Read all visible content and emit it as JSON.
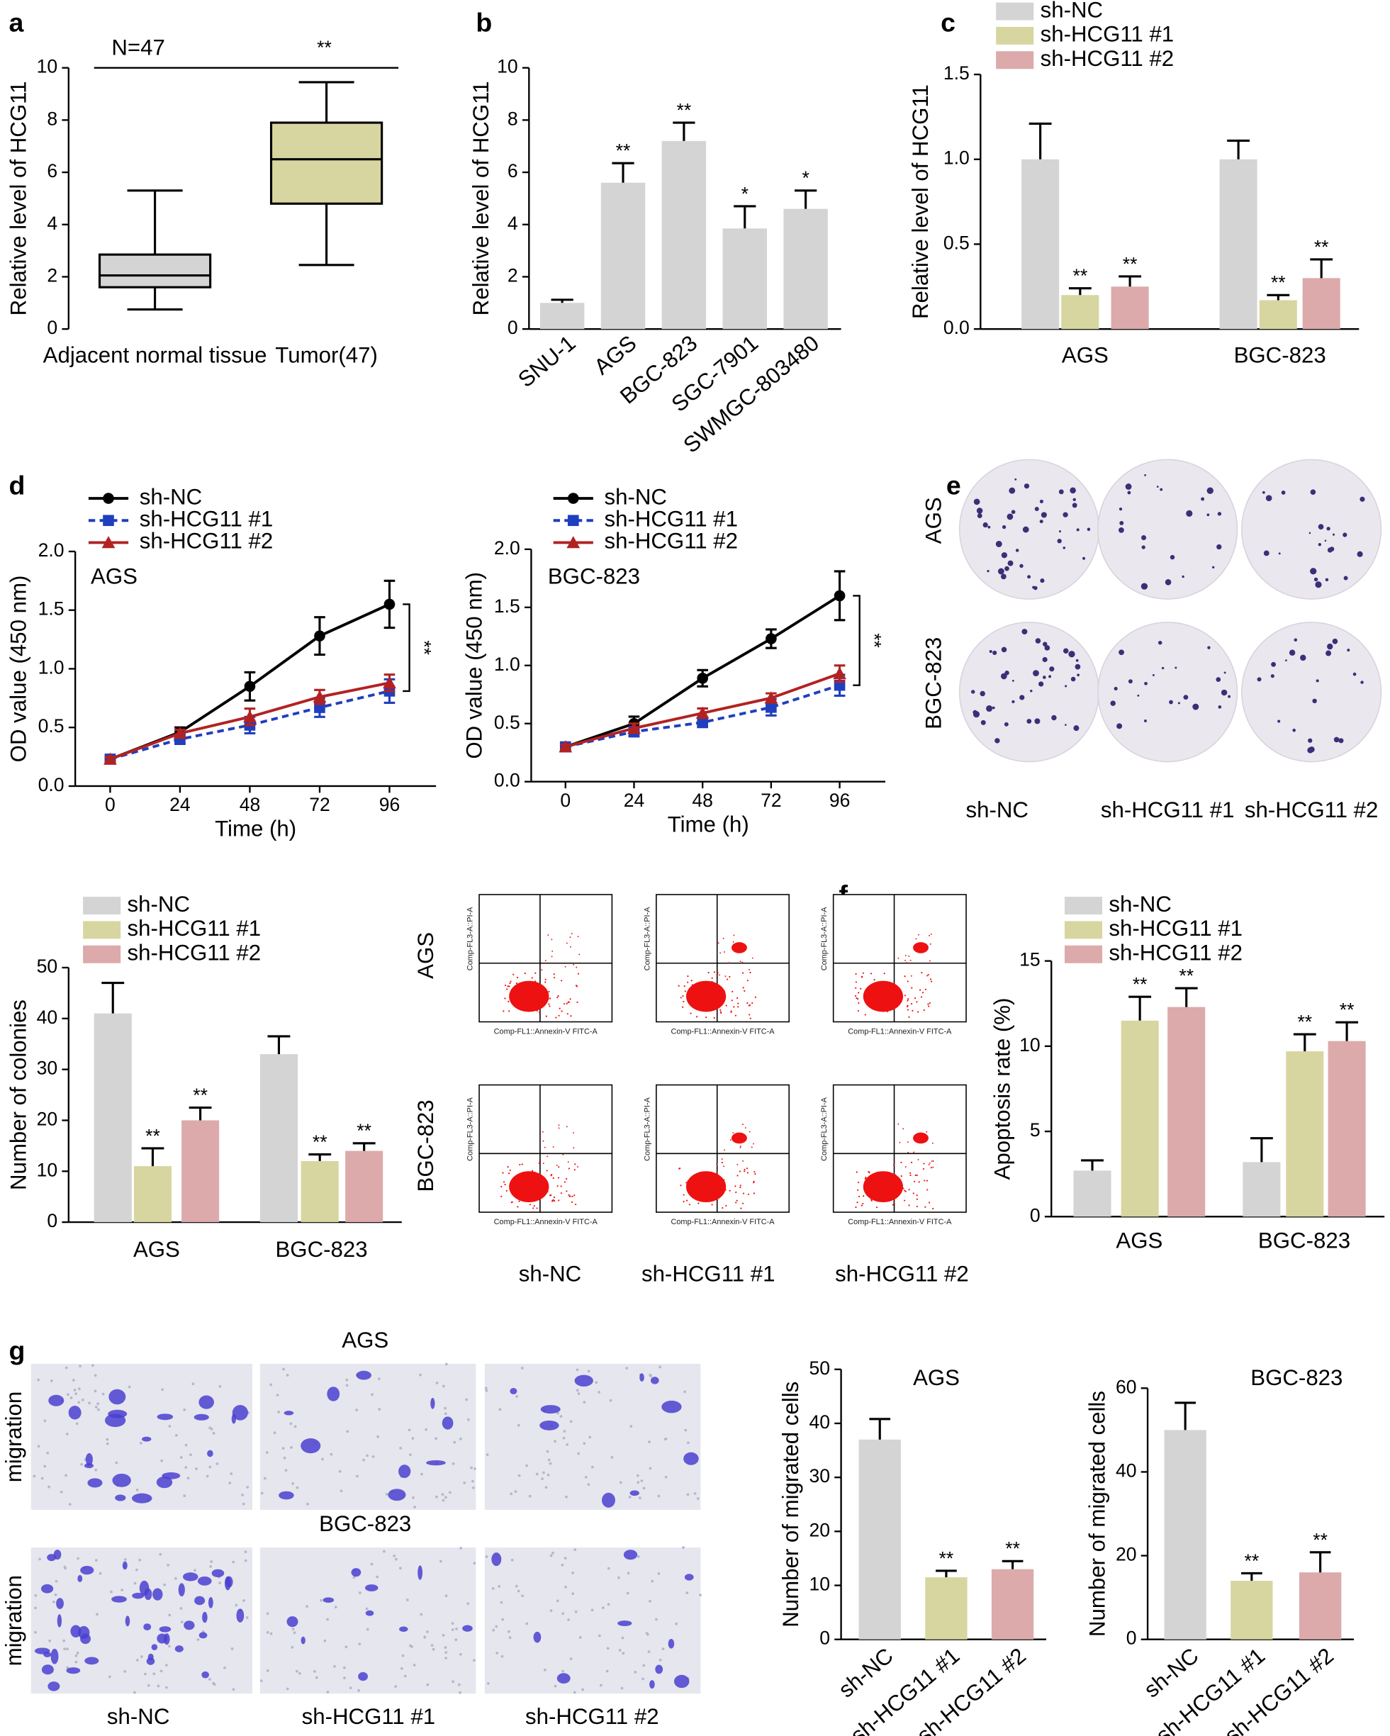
{
  "chart_data": [
    {
      "type": "box",
      "panel": "a",
      "ylabel": "Relative level of HCG11",
      "categories": [
        "Adjacent normal tissue",
        "Tumor(47)"
      ],
      "boxes": [
        {
          "min": 0.75,
          "q1": 1.6,
          "median": 2.05,
          "q3": 2.85,
          "max": 5.3,
          "color": "#d4d4d4"
        },
        {
          "min": 2.45,
          "q1": 4.8,
          "median": 6.5,
          "q3": 7.9,
          "max": 9.45,
          "color": "#d8d6a0"
        }
      ],
      "ylim": [
        0,
        10
      ],
      "yticks": [
        0,
        2,
        4,
        6,
        8,
        10
      ],
      "annotations": [
        "N=47",
        "**"
      ]
    },
    {
      "type": "bar",
      "panel": "b",
      "ylabel": "Relative level of HCG11",
      "categories": [
        "SNU-1",
        "AGS",
        "BGC-823",
        "SGC-7901",
        "SWMGC-803480"
      ],
      "values": [
        1.0,
        5.6,
        7.2,
        3.85,
        4.6
      ],
      "errors": [
        0.12,
        0.75,
        0.7,
        0.85,
        0.7
      ],
      "significance": [
        null,
        "**",
        "**",
        "*",
        "*"
      ],
      "color": "#d4d4d4",
      "ylim": [
        0,
        10
      ],
      "yticks": [
        0,
        2,
        4,
        6,
        8,
        10
      ]
    },
    {
      "type": "grouped_bar",
      "panel": "c",
      "ylabel": "Relative level of HCG11",
      "categories": [
        "AGS",
        "BGC-823"
      ],
      "series": [
        {
          "name": "sh-NC",
          "color": "#d4d4d4",
          "values": [
            1.0,
            1.0
          ],
          "errors": [
            0.21,
            0.11
          ],
          "significance": [
            null,
            null
          ]
        },
        {
          "name": "sh-HCG11 #1",
          "color": "#d8d6a0",
          "values": [
            0.2,
            0.17
          ],
          "errors": [
            0.04,
            0.03
          ],
          "significance": [
            "**",
            "**"
          ]
        },
        {
          "name": "sh-HCG11 #2",
          "color": "#dcaaaa",
          "values": [
            0.25,
            0.3
          ],
          "errors": [
            0.06,
            0.11
          ],
          "significance": [
            "**",
            "**"
          ]
        }
      ],
      "ylim": [
        0,
        1.5
      ],
      "yticks": [
        {
          "value": 0,
          "label": "0.0"
        },
        0.5,
        {
          "value": 1,
          "label": "1.0"
        },
        1.5
      ]
    },
    {
      "type": "line",
      "panel": "d",
      "title": "AGS",
      "xlabel": "Time (h)",
      "ylabel": "OD value (450 nm)",
      "x": [
        0,
        24,
        48,
        72,
        96
      ],
      "series": [
        {
          "name": "sh-NC",
          "color": "#000000",
          "marker": "circle",
          "dash": false,
          "values": [
            0.23,
            0.46,
            0.85,
            1.28,
            1.55
          ],
          "errors": [
            0.02,
            0.04,
            0.12,
            0.16,
            0.2
          ]
        },
        {
          "name": "sh-HCG11 #1",
          "color": "#1f3fbf",
          "marker": "square",
          "dash": true,
          "values": [
            0.23,
            0.4,
            0.52,
            0.67,
            0.81
          ],
          "errors": [
            0.02,
            0.04,
            0.07,
            0.08,
            0.1
          ]
        },
        {
          "name": "sh-HCG11 #2",
          "color": "#b22222",
          "marker": "triangle",
          "dash": false,
          "values": [
            0.23,
            0.45,
            0.59,
            0.76,
            0.88
          ],
          "errors": [
            0.02,
            0.03,
            0.07,
            0.06,
            0.07
          ]
        }
      ],
      "xlim": [
        -12,
        112
      ],
      "xticks": [
        0,
        24,
        48,
        72,
        96
      ],
      "ylim": [
        0,
        2
      ],
      "yticks": [
        {
          "value": 0,
          "label": "0.0"
        },
        0.5,
        {
          "value": 1,
          "label": "1.0"
        },
        1.5,
        {
          "value": 2,
          "label": "2.0"
        }
      ],
      "significance": "**"
    },
    {
      "type": "line",
      "title": "BGC-823",
      "xlabel": "Time (h)",
      "ylabel": "OD value (450 nm)",
      "x": [
        0,
        24,
        48,
        72,
        96
      ],
      "series": [
        {
          "name": "sh-NC",
          "color": "#000000",
          "marker": "circle",
          "dash": false,
          "values": [
            0.3,
            0.5,
            0.89,
            1.23,
            1.6
          ],
          "errors": [
            0.03,
            0.06,
            0.07,
            0.08,
            0.21
          ]
        },
        {
          "name": "sh-HCG11 #1",
          "color": "#1f3fbf",
          "marker": "square",
          "dash": true,
          "values": [
            0.3,
            0.43,
            0.51,
            0.64,
            0.83
          ],
          "errors": [
            0.02,
            0.04,
            0.04,
            0.07,
            0.09
          ]
        },
        {
          "name": "sh-HCG11 #2",
          "color": "#b22222",
          "marker": "triangle",
          "dash": false,
          "values": [
            0.3,
            0.46,
            0.59,
            0.72,
            0.93
          ],
          "errors": [
            0.02,
            0.04,
            0.04,
            0.04,
            0.07
          ]
        }
      ],
      "xlim": [
        -12,
        112
      ],
      "xticks": [
        0,
        24,
        48,
        72,
        96
      ],
      "ylim": [
        0,
        2
      ],
      "yticks": [
        {
          "value": 0,
          "label": "0.0"
        },
        0.5,
        {
          "value": 1,
          "label": "1.0"
        },
        1.5,
        {
          "value": 2,
          "label": "2.0"
        }
      ],
      "significance": "**"
    },
    {
      "type": "grouped_bar",
      "ylabel": "Number of colonies",
      "categories": [
        "AGS",
        "BGC-823"
      ],
      "series": [
        {
          "name": "sh-NC",
          "color": "#d4d4d4",
          "values": [
            41,
            33
          ],
          "errors": [
            6,
            3.5
          ],
          "significance": [
            null,
            null
          ]
        },
        {
          "name": "sh-HCG11 #1",
          "color": "#d8d6a0",
          "values": [
            11,
            12
          ],
          "errors": [
            3.5,
            1.3
          ],
          "significance": [
            "**",
            "**"
          ]
        },
        {
          "name": "sh-HCG11 #2",
          "color": "#dcaaaa",
          "values": [
            20,
            14
          ],
          "errors": [
            2.5,
            1.5
          ],
          "significance": [
            "**",
            "**"
          ]
        }
      ],
      "ylim": [
        0,
        50
      ],
      "yticks": [
        0,
        10,
        20,
        30,
        40,
        50
      ]
    },
    {
      "type": "grouped_bar",
      "ylabel": "Apoptosis rate (%)",
      "categories": [
        "AGS",
        "BGC-823"
      ],
      "series": [
        {
          "name": "sh-NC",
          "color": "#d4d4d4",
          "values": [
            2.7,
            3.2
          ],
          "errors": [
            0.6,
            1.4
          ],
          "significance": [
            null,
            null
          ]
        },
        {
          "name": "sh-HCG11 #1",
          "color": "#d8d6a0",
          "values": [
            11.5,
            9.7
          ],
          "errors": [
            1.4,
            1.0
          ],
          "significance": [
            "**",
            "**"
          ]
        },
        {
          "name": "sh-HCG11 #2",
          "color": "#dcaaaa",
          "values": [
            12.3,
            10.3
          ],
          "errors": [
            1.1,
            1.1
          ],
          "significance": [
            "**",
            "**"
          ]
        }
      ],
      "ylim": [
        0,
        15
      ],
      "yticks": [
        0,
        5,
        10,
        15
      ]
    },
    {
      "type": "bar",
      "title": "AGS",
      "ylabel": "Number of migrated cells",
      "categories": [
        "sh-NC",
        "sh-HCG11 #1",
        "sh-HCG11 #2"
      ],
      "values": [
        37,
        11.5,
        13
      ],
      "errors": [
        3.8,
        1.2,
        1.5
      ],
      "significance": [
        null,
        "**",
        "**"
      ],
      "colors": [
        "#d4d4d4",
        "#d8d6a0",
        "#dcaaaa"
      ],
      "ylim": [
        0,
        50
      ],
      "yticks": [
        0,
        10,
        20,
        30,
        40,
        50
      ]
    },
    {
      "type": "bar",
      "title": "BGC-823",
      "ylabel": "Number of migrated cells",
      "categories": [
        "sh-NC",
        "sh-HCG11 #1",
        "sh-HCG11 #2"
      ],
      "values": [
        50,
        14,
        16
      ],
      "errors": [
        6.5,
        1.8,
        4.8
      ],
      "significance": [
        null,
        "**",
        "**"
      ],
      "colors": [
        "#d4d4d4",
        "#d8d6a0",
        "#dcaaaa"
      ],
      "ylim": [
        0,
        60
      ],
      "yticks": [
        0,
        20,
        40,
        60
      ]
    }
  ],
  "image_panels": {
    "e": {
      "label": "e",
      "rows": [
        "AGS",
        "BGC-823"
      ],
      "columns": [
        "sh-NC",
        "sh-HCG11 #1",
        "sh-HCG11 #2"
      ]
    },
    "f": {
      "label": "f",
      "rows": [
        "AGS",
        "BGC-823"
      ],
      "columns": [
        "sh-NC",
        "sh-HCG11 #1",
        "sh-HCG11 #2"
      ],
      "x_axis": "Comp-FL1::Annexin-V FITC-A",
      "y_axis": "Comp-FL3-A::PI-A"
    },
    "g": {
      "label": "g",
      "row_titles": [
        "AGS",
        "BGC-823"
      ],
      "row_label": "migration",
      "columns": [
        "sh-NC",
        "sh-HCG11 #1",
        "sh-HCG11 #2"
      ]
    }
  }
}
